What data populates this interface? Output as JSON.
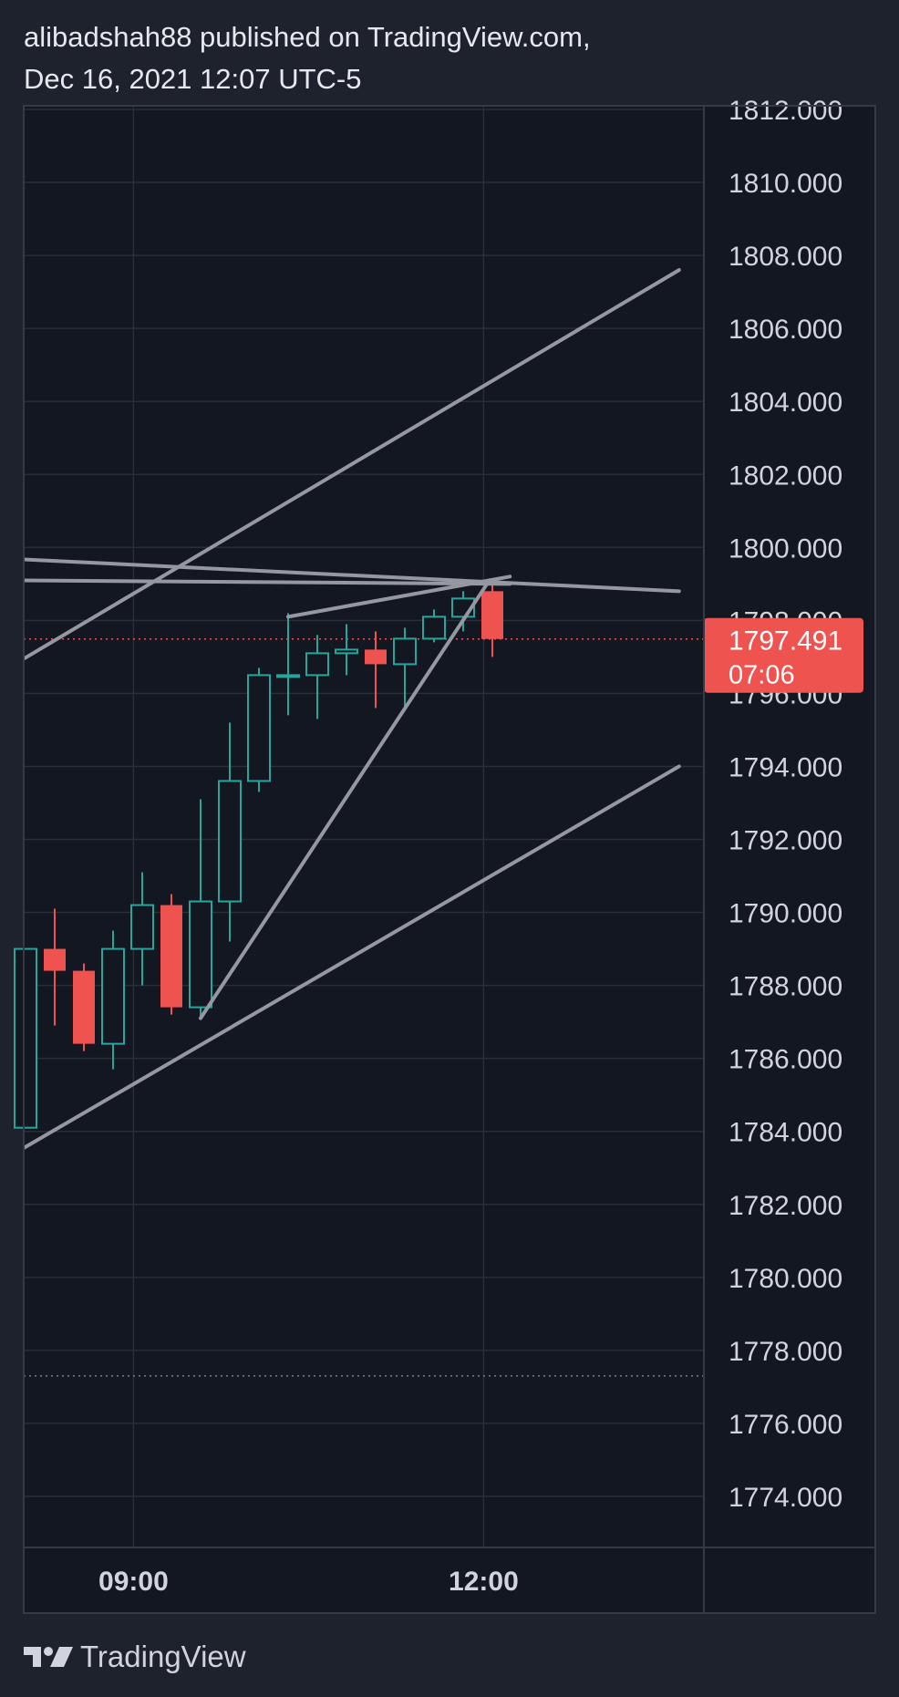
{
  "header": {
    "line1": "alibadshah88 published on TradingView.com,",
    "line2": "Dec 16, 2021 12:07 UTC-5"
  },
  "footer": {
    "brand": "TradingView"
  },
  "colors": {
    "background": "#1e222d",
    "pane": "#131722",
    "grid": "#2a2e39",
    "up": "#26a69a",
    "down": "#ef5350",
    "trendline": "#9598a1",
    "text": "#d1d4dc"
  },
  "chart_data": {
    "type": "candlestick",
    "ylim": [
      1772.6,
      1812.1
    ],
    "y_ticks": [
      "1812.000",
      "1810.000",
      "1808.000",
      "1806.000",
      "1804.000",
      "1802.000",
      "1800.000",
      "1798.000",
      "1796.000",
      "1794.000",
      "1792.000",
      "1790.000",
      "1788.000",
      "1786.000",
      "1784.000",
      "1782.000",
      "1780.000",
      "1778.000",
      "1776.000",
      "1774.000"
    ],
    "y_tick_values": [
      1812,
      1810,
      1808,
      1806,
      1804,
      1802,
      1800,
      1798,
      1796,
      1794,
      1792,
      1790,
      1788,
      1786,
      1784,
      1782,
      1780,
      1778,
      1776,
      1774
    ],
    "x_ticks": [
      "09:00",
      "12:00"
    ],
    "x_tick_bars": [
      3.7,
      15.7
    ],
    "last_price": {
      "value": 1797.491,
      "label": "1797.491",
      "countdown": "07:06"
    },
    "reference_level": 1777.3,
    "candles": [
      {
        "o": 1784.1,
        "h": 1789.0,
        "l": 1784.1,
        "c": 1789.0
      },
      {
        "o": 1789.0,
        "h": 1790.1,
        "l": 1786.9,
        "c": 1788.4
      },
      {
        "o": 1788.4,
        "h": 1788.6,
        "l": 1786.2,
        "c": 1786.4
      },
      {
        "o": 1786.4,
        "h": 1789.5,
        "l": 1785.7,
        "c": 1789.0
      },
      {
        "o": 1789.0,
        "h": 1791.1,
        "l": 1788.0,
        "c": 1790.2
      },
      {
        "o": 1790.2,
        "h": 1790.5,
        "l": 1787.2,
        "c": 1787.4
      },
      {
        "o": 1787.4,
        "h": 1793.1,
        "l": 1787.1,
        "c": 1790.3
      },
      {
        "o": 1790.3,
        "h": 1795.2,
        "l": 1789.2,
        "c": 1793.6
      },
      {
        "o": 1793.6,
        "h": 1796.7,
        "l": 1793.3,
        "c": 1796.5
      },
      {
        "o": 1796.5,
        "h": 1798.2,
        "l": 1795.4,
        "c": 1796.5
      },
      {
        "o": 1796.5,
        "h": 1797.6,
        "l": 1795.3,
        "c": 1797.1
      },
      {
        "o": 1797.1,
        "h": 1797.9,
        "l": 1796.5,
        "c": 1797.2
      },
      {
        "o": 1797.2,
        "h": 1797.7,
        "l": 1795.6,
        "c": 1796.8
      },
      {
        "o": 1796.8,
        "h": 1797.8,
        "l": 1795.6,
        "c": 1797.5
      },
      {
        "o": 1797.5,
        "h": 1798.3,
        "l": 1797.4,
        "c": 1798.1
      },
      {
        "o": 1798.1,
        "h": 1798.8,
        "l": 1797.7,
        "c": 1798.6
      },
      {
        "o": 1798.8,
        "h": 1799.1,
        "l": 1797.0,
        "c": 1797.491
      }
    ],
    "trendlines": [
      {
        "x1": -0.8,
        "y1": 1796.6,
        "x2": 22.4,
        "y2": 1807.6
      },
      {
        "x1": -0.8,
        "y1": 1783.2,
        "x2": 22.4,
        "y2": 1794.0
      },
      {
        "x1": -0.8,
        "y1": 1799.7,
        "x2": 22.4,
        "y2": 1798.8
      },
      {
        "x1": -0.8,
        "y1": 1799.1,
        "x2": 16.6,
        "y2": 1799.0
      },
      {
        "x1": 9.0,
        "y1": 1798.1,
        "x2": 16.6,
        "y2": 1799.2
      },
      {
        "x1": 6.0,
        "y1": 1787.1,
        "x2": 15.9,
        "y2": 1799.1
      }
    ]
  }
}
